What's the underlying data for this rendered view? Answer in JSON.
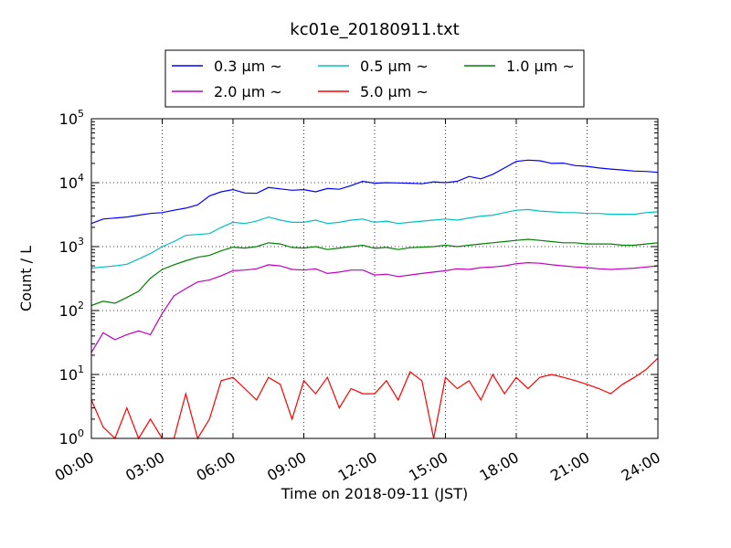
{
  "chart_data": {
    "type": "line",
    "title": "kc01e_20180911.txt",
    "xlabel": "Time on 2018-09-11 (JST)",
    "ylabel": "Count / L",
    "y_scale": "log",
    "ylim": [
      1,
      100000
    ],
    "xlim": [
      0,
      24
    ],
    "x_unit": "hours",
    "grid": true,
    "legend_position": "top-center",
    "x_ticks": [
      "00:00",
      "03:00",
      "06:00",
      "09:00",
      "12:00",
      "15:00",
      "18:00",
      "21:00",
      "24:00"
    ],
    "y_ticks": [
      {
        "value": 1,
        "base": "10",
        "exp": "0"
      },
      {
        "value": 10,
        "base": "10",
        "exp": "1"
      },
      {
        "value": 100,
        "base": "10",
        "exp": "2"
      },
      {
        "value": 1000,
        "base": "10",
        "exp": "3"
      },
      {
        "value": 10000,
        "base": "10",
        "exp": "4"
      },
      {
        "value": 100000,
        "base": "10",
        "exp": "5"
      }
    ],
    "series": [
      {
        "name": "0.3 μm ~",
        "color": "#0000ff",
        "x": [
          0,
          0.5,
          1,
          1.5,
          2,
          2.5,
          3,
          3.5,
          4,
          4.5,
          5,
          5.5,
          6,
          6.5,
          7,
          7.5,
          8,
          8.5,
          9,
          9.5,
          10,
          10.5,
          11,
          11.5,
          12,
          12.5,
          13,
          13.5,
          14,
          14.5,
          15,
          15.5,
          16,
          16.5,
          17,
          17.5,
          18,
          18.5,
          19,
          19.5,
          20,
          20.5,
          21,
          21.5,
          22,
          22.5,
          23,
          23.5,
          24
        ],
        "values": [
          2300,
          2700,
          2800,
          2900,
          3100,
          3300,
          3400,
          3700,
          4000,
          4500,
          6200,
          7200,
          7800,
          6900,
          6800,
          8400,
          8000,
          7600,
          7800,
          7200,
          8100,
          7900,
          9000,
          10500,
          9800,
          10000,
          9900,
          9800,
          9600,
          10300,
          10000,
          10500,
          12500,
          11500,
          13500,
          17000,
          21500,
          22500,
          22000,
          20000,
          20200,
          18500,
          18000,
          17000,
          16300,
          15800,
          15200,
          15000,
          14500
        ]
      },
      {
        "name": "0.5 μm ~",
        "color": "#00bfbf",
        "x": [
          0,
          0.5,
          1,
          1.5,
          2,
          2.5,
          3,
          3.5,
          4,
          4.5,
          5,
          5.5,
          6,
          6.5,
          7,
          7.5,
          8,
          8.5,
          9,
          9.5,
          10,
          10.5,
          11,
          11.5,
          12,
          12.5,
          13,
          13.5,
          14,
          14.5,
          15,
          15.5,
          16,
          16.5,
          17,
          17.5,
          18,
          18.5,
          19,
          19.5,
          20,
          20.5,
          21,
          21.5,
          22,
          22.5,
          23,
          23.5,
          24
        ],
        "values": [
          460,
          480,
          500,
          530,
          640,
          780,
          1000,
          1200,
          1500,
          1550,
          1600,
          2000,
          2400,
          2300,
          2500,
          2900,
          2600,
          2400,
          2400,
          2600,
          2300,
          2400,
          2600,
          2700,
          2400,
          2500,
          2300,
          2400,
          2500,
          2600,
          2700,
          2600,
          2800,
          3000,
          3100,
          3400,
          3700,
          3800,
          3600,
          3500,
          3400,
          3400,
          3300,
          3300,
          3200,
          3200,
          3200,
          3400,
          3500
        ]
      },
      {
        "name": "1.0 μm ~",
        "color": "#008000",
        "x": [
          0,
          0.5,
          1,
          1.5,
          2,
          2.5,
          3,
          3.5,
          4,
          4.5,
          5,
          5.5,
          6,
          6.5,
          7,
          7.5,
          8,
          8.5,
          9,
          9.5,
          10,
          10.5,
          11,
          11.5,
          12,
          12.5,
          13,
          13.5,
          14,
          14.5,
          15,
          15.5,
          16,
          16.5,
          17,
          17.5,
          18,
          18.5,
          19,
          19.5,
          20,
          20.5,
          21,
          21.5,
          22,
          22.5,
          23,
          23.5,
          24
        ],
        "values": [
          120,
          140,
          130,
          160,
          200,
          320,
          440,
          520,
          600,
          680,
          730,
          860,
          980,
          950,
          1000,
          1150,
          1100,
          970,
          950,
          1000,
          900,
          950,
          1000,
          1050,
          940,
          970,
          900,
          960,
          980,
          1000,
          1050,
          1000,
          1050,
          1100,
          1150,
          1200,
          1250,
          1300,
          1250,
          1200,
          1150,
          1150,
          1100,
          1100,
          1100,
          1050,
          1050,
          1100,
          1150
        ]
      },
      {
        "name": "2.0 μm ~",
        "color": "#bf00bf",
        "x": [
          0,
          0.5,
          1,
          1.5,
          2,
          2.5,
          3,
          3.5,
          4,
          4.5,
          5,
          5.5,
          6,
          6.5,
          7,
          7.5,
          8,
          8.5,
          9,
          9.5,
          10,
          10.5,
          11,
          11.5,
          12,
          12.5,
          13,
          13.5,
          14,
          14.5,
          15,
          15.5,
          16,
          16.5,
          17,
          17.5,
          18,
          18.5,
          19,
          19.5,
          20,
          20.5,
          21,
          21.5,
          22,
          22.5,
          23,
          23.5,
          24
        ],
        "values": [
          22,
          45,
          35,
          42,
          48,
          42,
          90,
          170,
          220,
          280,
          300,
          350,
          420,
          430,
          450,
          520,
          500,
          440,
          430,
          450,
          380,
          400,
          430,
          430,
          360,
          370,
          340,
          360,
          380,
          400,
          420,
          450,
          440,
          470,
          480,
          500,
          540,
          560,
          550,
          520,
          500,
          480,
          470,
          450,
          440,
          450,
          460,
          480,
          500
        ]
      },
      {
        "name": "5.0 μm ~",
        "color": "#ff0000",
        "x": [
          0,
          0.5,
          1,
          1.5,
          2,
          2.5,
          3,
          3.5,
          4,
          4.5,
          5,
          5.5,
          6,
          6.5,
          7,
          7.5,
          8,
          8.5,
          9,
          9.5,
          10,
          10.5,
          11,
          11.5,
          12,
          12.5,
          13,
          13.5,
          14,
          14.5,
          15,
          15.5,
          16,
          16.5,
          17,
          17.5,
          18,
          18.5,
          19,
          19.5,
          20,
          20.5,
          21,
          21.5,
          22,
          22.5,
          23,
          23.5,
          24
        ],
        "values": [
          4,
          1.5,
          1,
          3,
          1,
          2,
          1,
          1,
          5,
          1,
          2,
          8,
          9,
          6,
          4,
          9,
          7,
          2,
          8,
          5,
          9,
          3,
          6,
          5,
          5,
          8,
          4,
          11,
          8,
          1,
          9,
          6,
          8,
          4,
          10,
          5,
          9,
          6,
          9,
          10,
          9,
          8,
          7,
          6,
          5,
          7,
          9,
          12,
          18
        ]
      }
    ]
  }
}
